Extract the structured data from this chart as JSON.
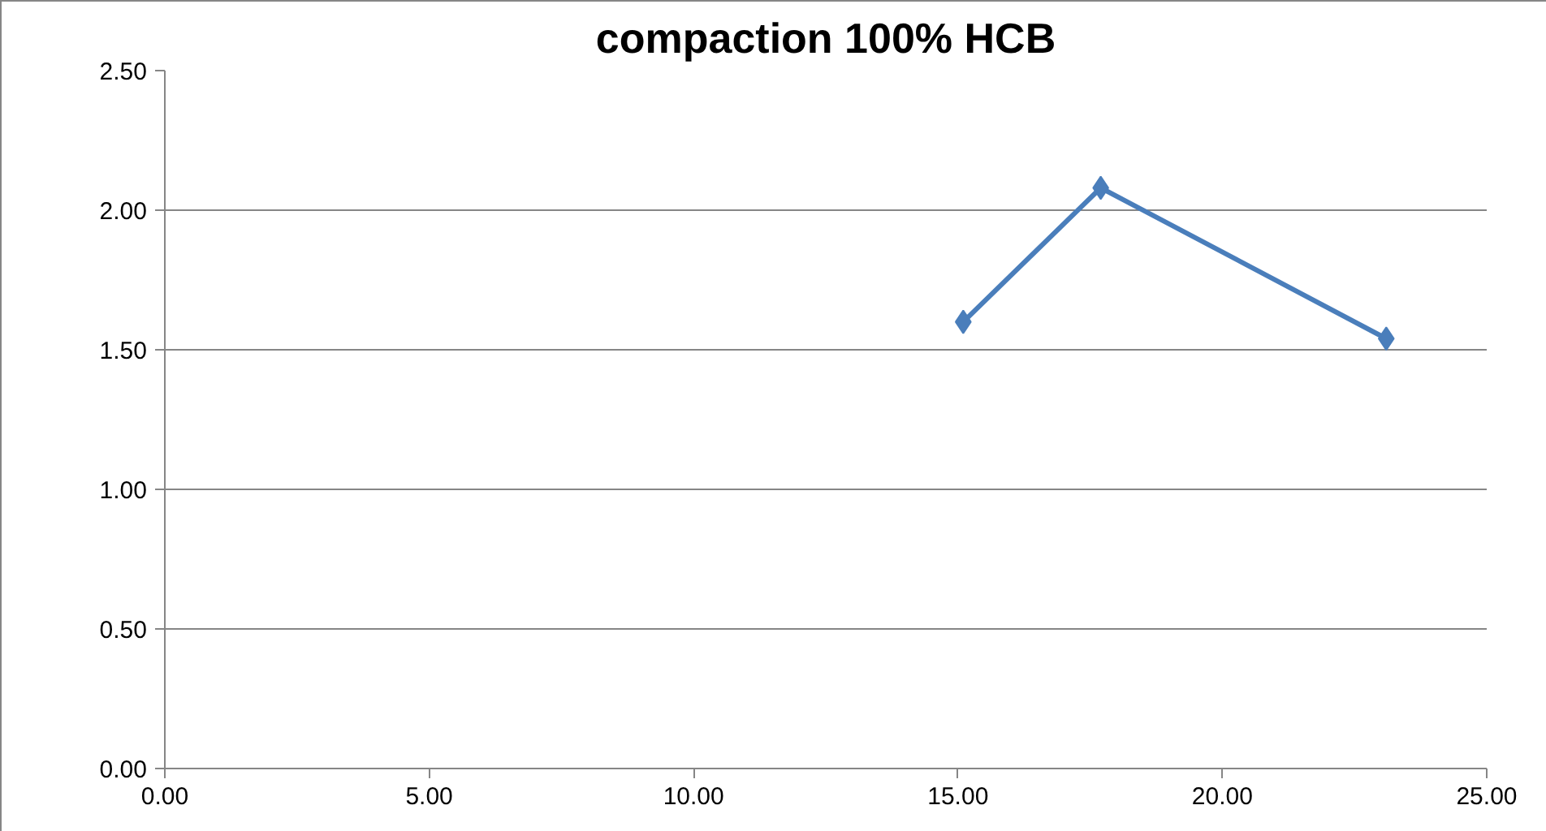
{
  "chart_data": {
    "type": "line",
    "title": "compaction 100% HCB",
    "x": [
      15.1,
      17.7,
      23.1
    ],
    "series": [
      {
        "color": "#4a7ebb",
        "values": [
          1.6,
          2.08,
          1.54
        ]
      }
    ],
    "xlim": [
      0,
      25
    ],
    "xticks": [
      {
        "value": 0,
        "label": "0.00"
      },
      {
        "value": 5,
        "label": "5.00"
      },
      {
        "value": 10,
        "label": "10.00"
      },
      {
        "value": 15,
        "label": "15.00"
      },
      {
        "value": 20,
        "label": "20.00"
      },
      {
        "value": 25,
        "label": "25.00"
      }
    ],
    "ylim": [
      0,
      2.5
    ],
    "yticks": [
      {
        "value": 0,
        "label": "0.00"
      },
      {
        "value": 0.5,
        "label": "0.50"
      },
      {
        "value": 1,
        "label": "1.00"
      },
      {
        "value": 1.5,
        "label": "1.50"
      },
      {
        "value": 2,
        "label": "2.00"
      },
      {
        "value": 2.5,
        "label": "2.50"
      }
    ],
    "grid": "y",
    "marker": "diamond",
    "line_style": "solid"
  }
}
